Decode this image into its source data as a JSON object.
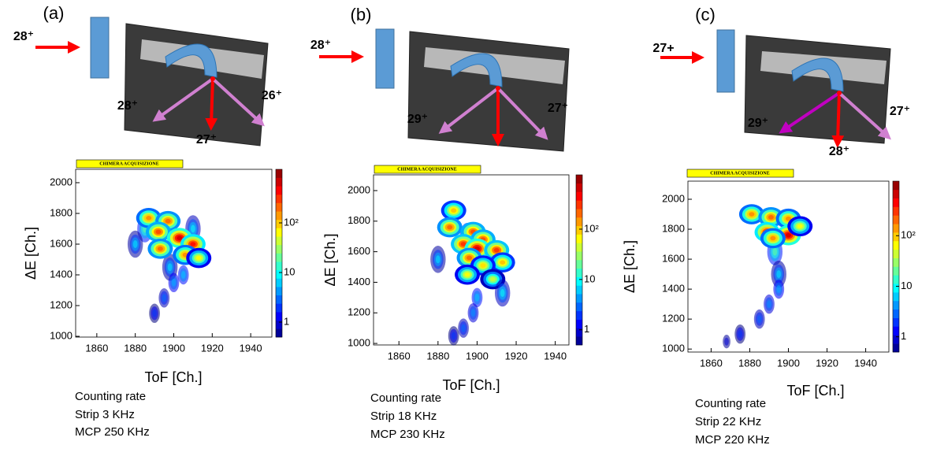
{
  "panels": [
    {
      "label": "(a)",
      "beam_charge": "28⁺",
      "fragments": [
        "28⁺",
        "27⁺",
        "26⁺"
      ],
      "counting_rate": [
        "Counting rate",
        "Strip 3 KHz",
        "MCP 250 KHz"
      ]
    },
    {
      "label": "(b)",
      "beam_charge": "28⁺",
      "fragments": [
        "29⁺",
        "27⁺"
      ],
      "counting_rate": [
        "Counting rate",
        "Strip 18  KHz",
        "MCP 230 KHz"
      ]
    },
    {
      "label": "(c)",
      "beam_charge": "27+",
      "fragments": [
        "29⁺",
        "28⁺",
        "27⁺"
      ],
      "counting_rate": [
        "Counting rate",
        "Strip 22 KHz",
        "MCP 220 KHz"
      ]
    }
  ],
  "chart_data": [
    {
      "type": "heatmap",
      "header": "CHIMERA ACQUISIZIONE",
      "xlabel": "ToF [Ch.]",
      "ylabel": "ΔE [Ch.]",
      "xlim": [
        1849,
        1951
      ],
      "ylim": [
        995,
        2087
      ],
      "xticks": [
        1860,
        1880,
        1900,
        1920,
        1940
      ],
      "yticks": [
        1000,
        1200,
        1400,
        1600,
        1800,
        2000
      ],
      "zlim": [
        0.5,
        1200
      ],
      "zticks": [
        1,
        10,
        {
          "value": 100,
          "label": "10²"
        }
      ],
      "log_z": true,
      "x": [
        1885,
        1910,
        1880,
        1898,
        1905,
        1900,
        1895,
        1890,
        1887,
        1897,
        1892,
        1903,
        1910,
        1893,
        1906,
        1913
      ],
      "y": [
        1700,
        1700,
        1600,
        1450,
        1400,
        1350,
        1250,
        1150,
        1770,
        1750,
        1680,
        1640,
        1600,
        1570,
        1530,
        1510
      ],
      "values": [
        20,
        10,
        8,
        8,
        6,
        5,
        3,
        2,
        150,
        200,
        250,
        600,
        400,
        200,
        150,
        60
      ]
    },
    {
      "type": "heatmap",
      "header": "CHIMERA ACQUISIZIONE",
      "xlabel": "ToF [Ch.]",
      "ylabel": "ΔE [Ch.]",
      "xlim": [
        1847,
        1947
      ],
      "ylim": [
        990,
        2103
      ],
      "xticks": [
        1860,
        1880,
        1900,
        1920,
        1940
      ],
      "yticks": [
        1000,
        1200,
        1400,
        1600,
        1800,
        2000
      ],
      "zlim": [
        0.5,
        1200
      ],
      "zticks": [
        1,
        10,
        {
          "value": 100,
          "label": "10²"
        }
      ],
      "log_z": true,
      "x": [
        1895,
        1880,
        1900,
        1898,
        1893,
        1888,
        1888,
        1886,
        1898,
        1903,
        1893,
        1900,
        1910,
        1896,
        1913,
        1903,
        1895,
        1908,
        1913
      ],
      "y": [
        1700,
        1550,
        1300,
        1200,
        1100,
        1050,
        1870,
        1760,
        1730,
        1680,
        1650,
        1620,
        1610,
        1560,
        1530,
        1510,
        1450,
        1420,
        1330
      ],
      "values": [
        20,
        8,
        6,
        4,
        3,
        2,
        100,
        200,
        250,
        250,
        300,
        600,
        300,
        200,
        100,
        80,
        60,
        40,
        10
      ]
    },
    {
      "type": "heatmap",
      "header": "CHIMERA ACQUISIZIONE",
      "xlabel": "ToF [Ch.]",
      "ylabel": "ΔE [Ch.]",
      "xlim": [
        1848,
        1952
      ],
      "ylim": [
        980,
        2121
      ],
      "xticks": [
        1860,
        1880,
        1900,
        1920,
        1940
      ],
      "yticks": [
        1000,
        1200,
        1400,
        1600,
        1800,
        2000
      ],
      "zlim": [
        0.5,
        1200
      ],
      "zticks": [
        1,
        10,
        {
          "value": 100,
          "label": "10²"
        }
      ],
      "log_z": true,
      "x": [
        1893,
        1895,
        1895,
        1890,
        1885,
        1875,
        1868,
        1881,
        1891,
        1900,
        1889,
        1900,
        1892,
        1906
      ],
      "y": [
        1650,
        1500,
        1400,
        1300,
        1200,
        1100,
        1050,
        1900,
        1880,
        1870,
        1780,
        1760,
        1740,
        1820
      ],
      "values": [
        20,
        8,
        5,
        4,
        3,
        2,
        1,
        150,
        200,
        150,
        400,
        600,
        150,
        60
      ]
    }
  ]
}
